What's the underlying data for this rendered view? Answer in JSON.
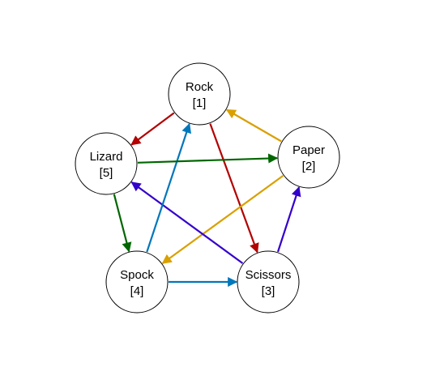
{
  "nodes": [
    {
      "id": "rock",
      "name": "Rock",
      "number": "[1]"
    },
    {
      "id": "paper",
      "name": "Paper",
      "number": "[2]"
    },
    {
      "id": "scissors",
      "name": "Scissors",
      "number": "[3]"
    },
    {
      "id": "spock",
      "name": "Spock",
      "number": "[4]"
    },
    {
      "id": "lizard",
      "name": "Lizard",
      "number": "[5]"
    }
  ],
  "edges": [
    {
      "from": "rock",
      "to": "lizard",
      "color": "#b30000"
    },
    {
      "from": "rock",
      "to": "scissors",
      "color": "#b30000"
    },
    {
      "from": "paper",
      "to": "rock",
      "color": "#d9a000"
    },
    {
      "from": "paper",
      "to": "spock",
      "color": "#d9a000"
    },
    {
      "from": "scissors",
      "to": "paper",
      "color": "#3300cc"
    },
    {
      "from": "scissors",
      "to": "lizard",
      "color": "#3300cc"
    },
    {
      "from": "spock",
      "to": "rock",
      "color": "#0077bb"
    },
    {
      "from": "spock",
      "to": "scissors",
      "color": "#0077bb"
    },
    {
      "from": "lizard",
      "to": "paper",
      "color": "#006600"
    },
    {
      "from": "lizard",
      "to": "spock",
      "color": "#006600"
    }
  ]
}
